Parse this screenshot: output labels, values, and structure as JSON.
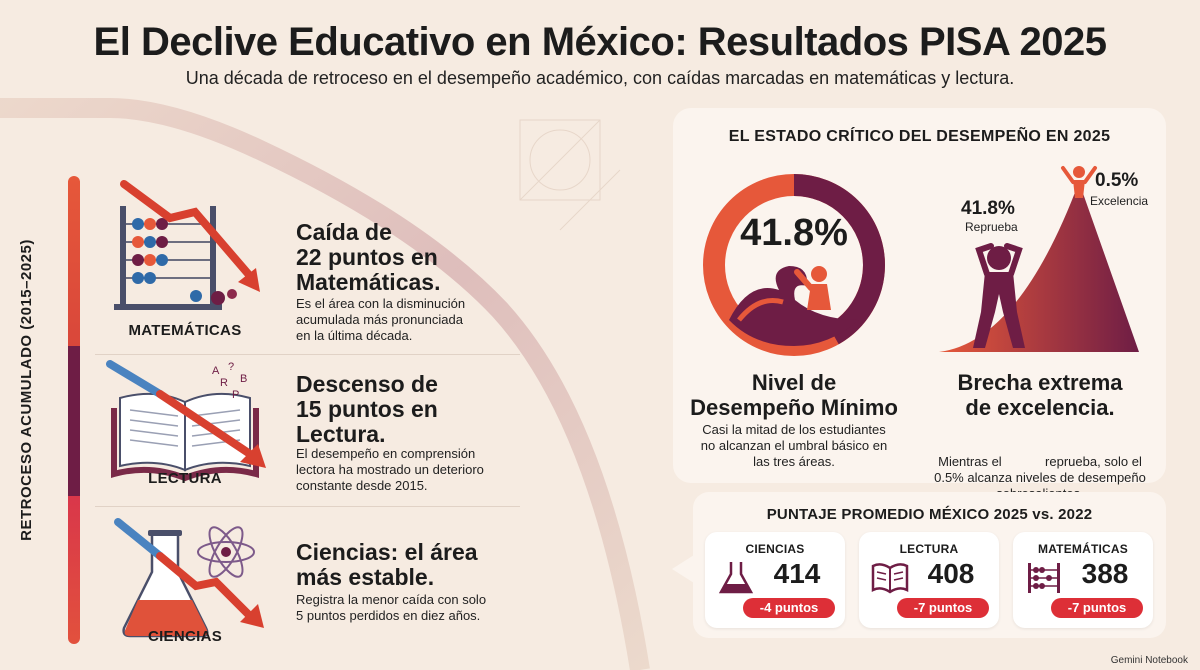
{
  "header": {
    "title": "El Declive Educativo en México: Resultados PISA 2025",
    "subtitle": "Una década de retroceso en el desempeño académico, con caídas marcadas en matemáticas y lectura."
  },
  "axis_label": "RETROCESO ACUMULADO (2015–2025)",
  "subjects": [
    {
      "label": "MATEMÁTICAS",
      "headline": [
        "Caída de",
        "22 puntos en",
        "Matemáticas."
      ],
      "description": [
        "Es el área con la disminución",
        "acumulada más pronunciada",
        "en la última década."
      ]
    },
    {
      "label": "LECTURA",
      "headline": [
        "Descenso de",
        "15 puntos en",
        "Lectura."
      ],
      "description": [
        "El desempeño en comprensión",
        "lectora ha mostrado un deterioro",
        "constante desde 2015."
      ]
    },
    {
      "label": "CIENCIAS",
      "headline": [
        "Ciencias: el área",
        "más estable."
      ],
      "description": [
        "Registra la menor caída con solo",
        "5 puntos perdidos en diez años."
      ]
    }
  ],
  "critical": {
    "title": "EL ESTADO CRÍTICO DEL DESEMPEÑO EN 2025",
    "donut_value": "41.8%",
    "donut_fraction": 0.418,
    "left_headline": [
      "Nivel de",
      "Desempeño Mínimo"
    ],
    "left_description": [
      "Casi la mitad de los estudiantes",
      "no alcanzan el umbral básico en",
      "las tres áreas."
    ],
    "fail_value": "41.8%",
    "fail_label": "Reprueba",
    "excel_value": "0.5%",
    "excel_label": "Excelencia",
    "right_headline": [
      "Brecha extrema",
      "de excelencia."
    ],
    "right_description": [
      "Mientras el            reprueba, solo el",
      "0.5% alcanza niveles de desempeño",
      "sobresalientes."
    ]
  },
  "scores": {
    "title": "PUNTAJE PROMEDIO MÉXICO 2025 vs. 2022",
    "cards": [
      {
        "label": "CIENCIAS",
        "score": "414",
        "delta": "-4 puntos",
        "icon": "flask-icon"
      },
      {
        "label": "LECTURA",
        "score": "408",
        "delta": "-7 puntos",
        "icon": "book-icon"
      },
      {
        "label": "MATEMÁTICAS",
        "score": "388",
        "delta": "-7 puntos",
        "icon": "abacus-icon"
      }
    ]
  },
  "footer": "Gemini Notebook",
  "colors": {
    "background": "#f6ebe1",
    "orange": "#e6583a",
    "plum": "#6e1d45",
    "red": "#dd2f37"
  }
}
